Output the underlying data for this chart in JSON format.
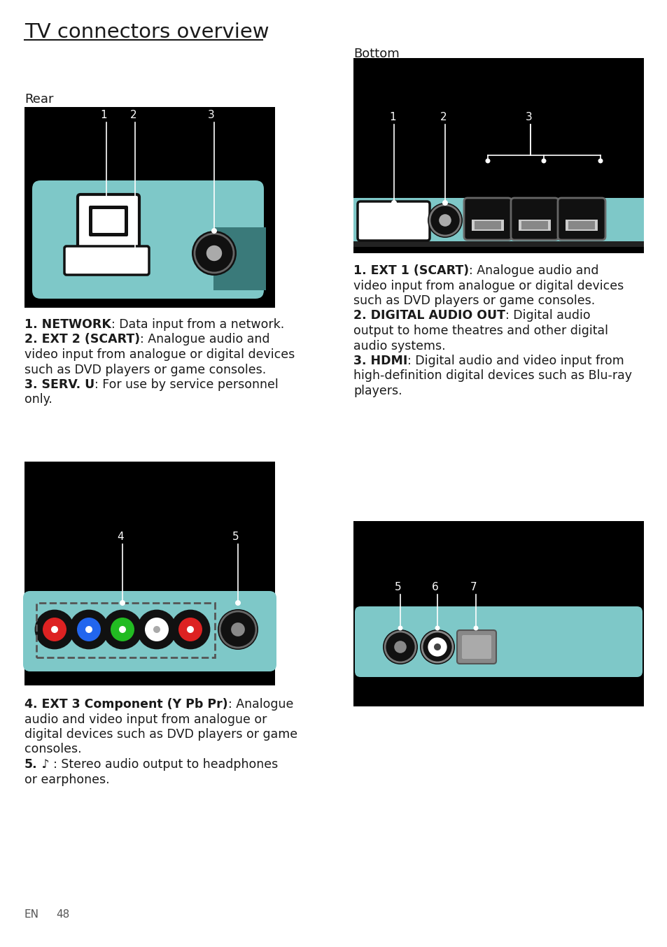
{
  "title": "TV connectors overview",
  "section_rear": "Rear",
  "section_bottom": "Bottom",
  "bg_color": "#ffffff",
  "image_bg": "#000000",
  "teal_color": "#7ec8c8",
  "footer": "EN      48",
  "font_color": "#1a1a1a",
  "desc_left1_lines": [
    [
      "bold",
      "1. NETWORK",
      "normal",
      ": Data input from a network."
    ],
    [
      "bold",
      "2. EXT 2 (SCART)",
      "normal",
      ": Analogue audio and"
    ],
    [
      "normal",
      "video input from analogue or digital devices"
    ],
    [
      "normal",
      "such as DVD players or game consoles."
    ],
    [
      "bold",
      "3. SERV. U",
      "normal",
      ": For use by service personnel"
    ],
    [
      "normal",
      "only."
    ]
  ],
  "desc_right1_lines": [
    [
      "bold",
      "1. EXT 1 (SCART)",
      "normal",
      ": Analogue audio and"
    ],
    [
      "normal",
      "video input from analogue or digital devices"
    ],
    [
      "normal",
      "such as DVD players or game consoles."
    ],
    [
      "bold",
      "2. DIGITAL AUDIO OUT",
      "normal",
      ": Digital audio"
    ],
    [
      "normal",
      "output to home theatres and other digital"
    ],
    [
      "normal",
      "audio systems."
    ],
    [
      "bold",
      "3. HDMI",
      "normal",
      ": Digital audio and video input from"
    ],
    [
      "normal",
      "high-definition digital devices such as Blu-ray"
    ],
    [
      "normal",
      "players."
    ]
  ],
  "desc_left2_lines": [
    [
      "bold",
      "4. EXT 3 Component (Y Pb Pr)",
      "normal",
      ": Analogue"
    ],
    [
      "normal",
      "audio and video input from analogue or"
    ],
    [
      "normal",
      "digital devices such as DVD players or game"
    ],
    [
      "normal",
      "consoles."
    ],
    [
      "bold",
      "5.",
      "normal",
      " ♪ : Stereo audio output to headphones"
    ],
    [
      "normal",
      "or earphones."
    ]
  ]
}
